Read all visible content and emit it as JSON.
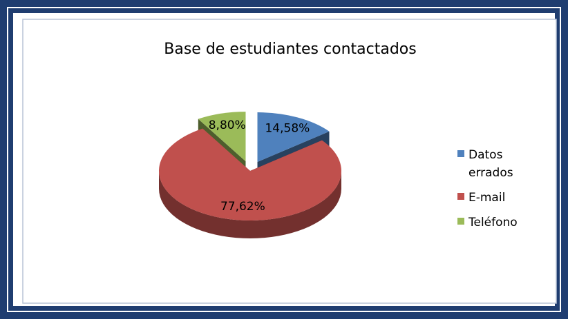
{
  "chart_data": {
    "type": "pie",
    "title": "Base de estudiantes contactados",
    "categories": [
      "Datos errados",
      "E-mail",
      "Teléfono"
    ],
    "values": [
      14.58,
      77.62,
      8.8
    ],
    "value_labels": [
      "14,58%",
      "77,62%",
      "8,80%"
    ],
    "colors": [
      "#4f81bd",
      "#c0504d",
      "#9bbb59"
    ],
    "legend": "right"
  }
}
